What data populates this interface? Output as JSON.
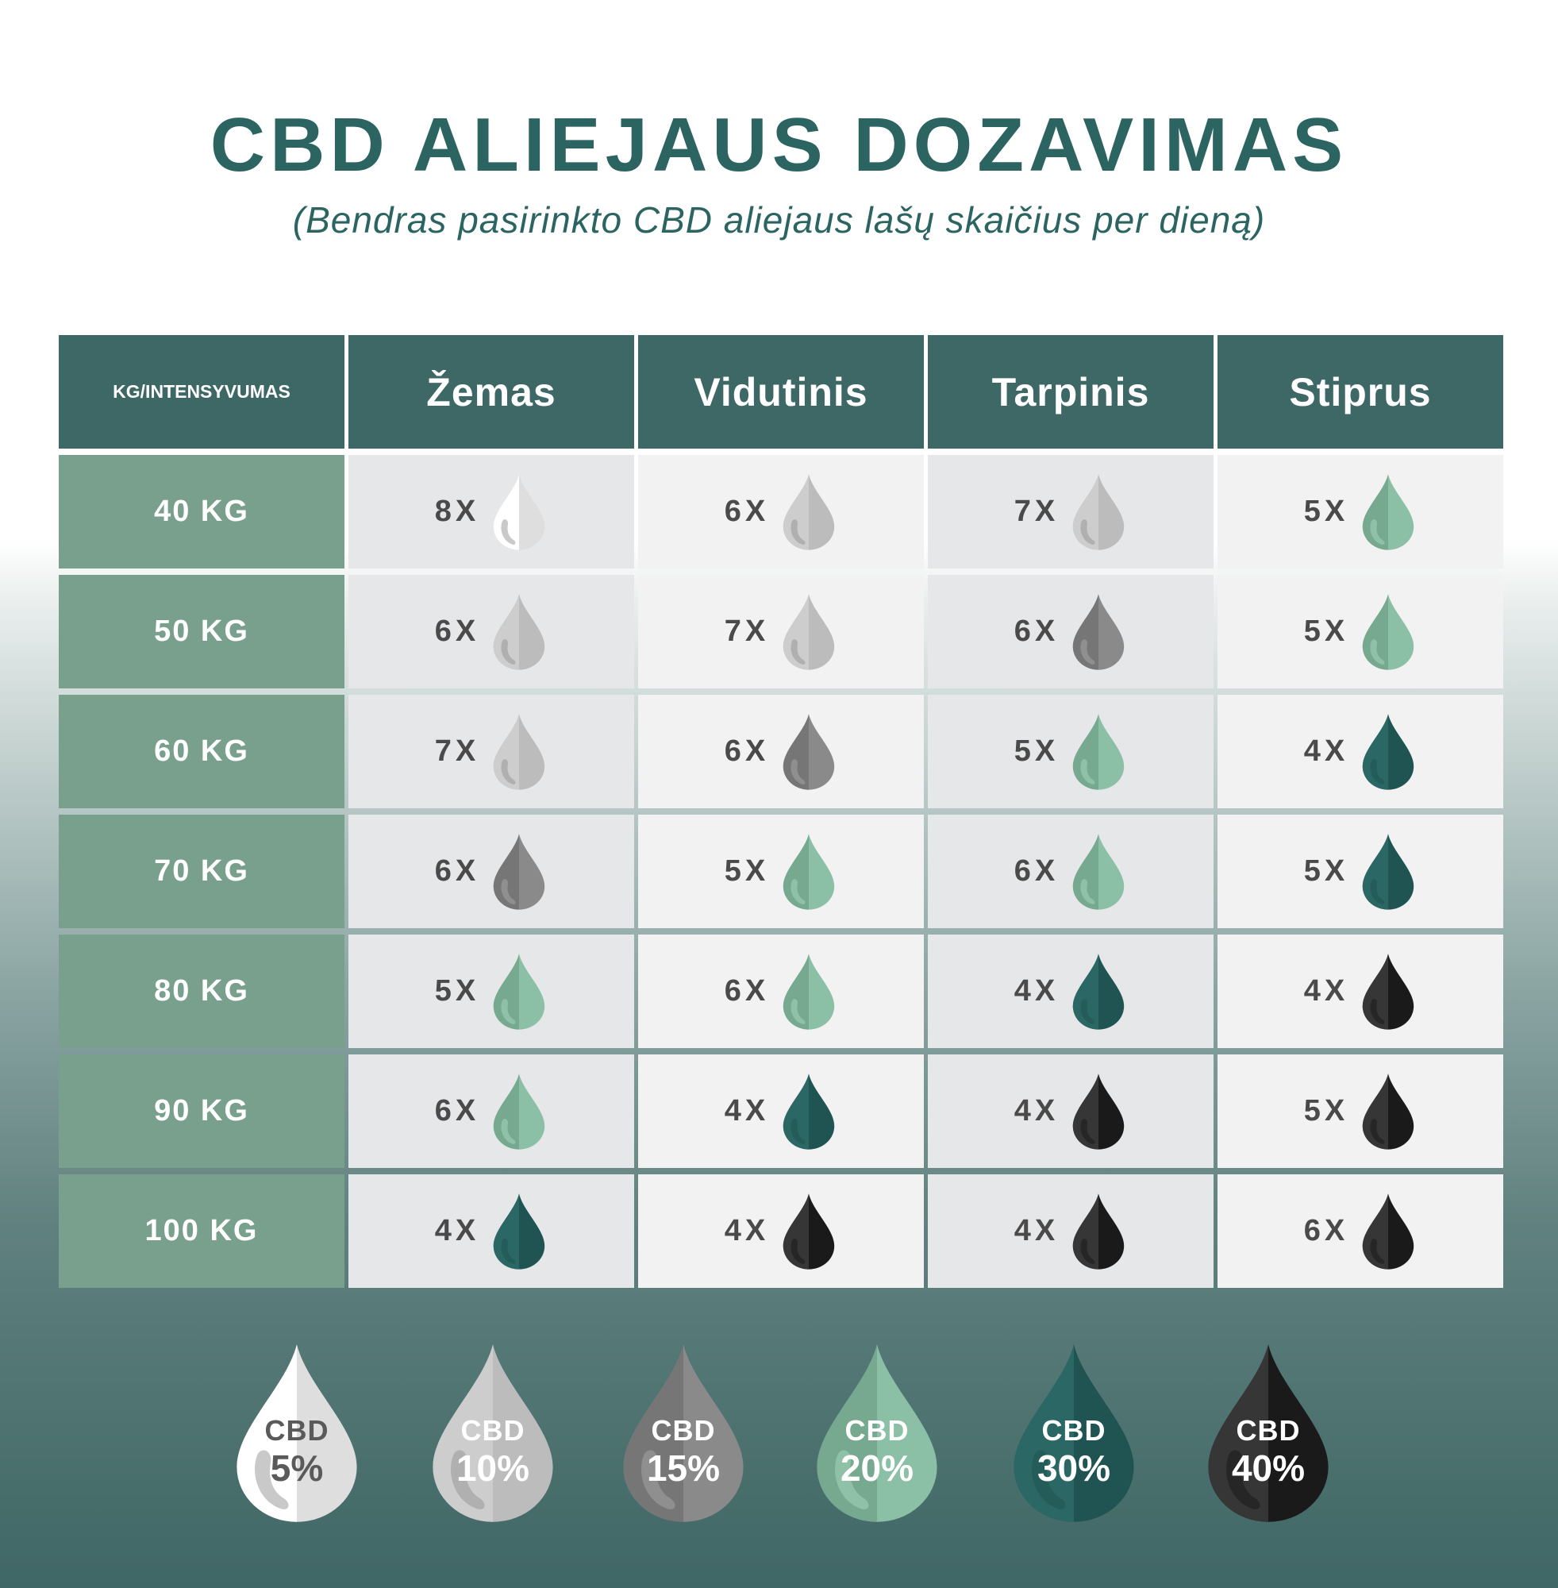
{
  "header": {
    "title": "CBD ALIEJAUS DOZAVIMAS",
    "subtitle": "(Bendras pasirinkto CBD aliejaus lašų skaičius per dieną)"
  },
  "table": {
    "columns": [
      "KG/INTENSYVUMAS",
      "Žemas",
      "Vidutinis",
      "Tarpinis",
      "Stiprus"
    ],
    "rows": [
      {
        "label": "40 KG",
        "cells": [
          {
            "value": "8X",
            "level": "5%"
          },
          {
            "value": "6X",
            "level": "10%"
          },
          {
            "value": "7X",
            "level": "10%"
          },
          {
            "value": "5X",
            "level": "20%"
          }
        ]
      },
      {
        "label": "50 KG",
        "cells": [
          {
            "value": "6X",
            "level": "10%"
          },
          {
            "value": "7X",
            "level": "10%"
          },
          {
            "value": "6X",
            "level": "15%"
          },
          {
            "value": "5X",
            "level": "20%"
          }
        ]
      },
      {
        "label": "60 KG",
        "cells": [
          {
            "value": "7X",
            "level": "10%"
          },
          {
            "value": "6X",
            "level": "15%"
          },
          {
            "value": "5X",
            "level": "20%"
          },
          {
            "value": "4X",
            "level": "30%"
          }
        ]
      },
      {
        "label": "70 KG",
        "cells": [
          {
            "value": "6X",
            "level": "15%"
          },
          {
            "value": "5X",
            "level": "20%"
          },
          {
            "value": "6X",
            "level": "20%"
          },
          {
            "value": "5X",
            "level": "30%"
          }
        ]
      },
      {
        "label": "80 KG",
        "cells": [
          {
            "value": "5X",
            "level": "20%"
          },
          {
            "value": "6X",
            "level": "20%"
          },
          {
            "value": "4X",
            "level": "30%"
          },
          {
            "value": "4X",
            "level": "40%"
          }
        ]
      },
      {
        "label": "90 KG",
        "cells": [
          {
            "value": "6X",
            "level": "20%"
          },
          {
            "value": "4X",
            "level": "30%"
          },
          {
            "value": "4X",
            "level": "40%"
          },
          {
            "value": "5X",
            "level": "40%"
          }
        ]
      },
      {
        "label": "100 KG",
        "cells": [
          {
            "value": "4X",
            "level": "30%"
          },
          {
            "value": "4X",
            "level": "40%"
          },
          {
            "value": "4X",
            "level": "40%"
          },
          {
            "value": "6X",
            "level": "40%"
          }
        ]
      }
    ]
  },
  "legend": [
    {
      "label": "CBD",
      "percent": "5%",
      "colors": {
        "left": "#ffffff",
        "right": "#dedede",
        "hl": "#c9c9c9",
        "text": "#5a5a5a"
      }
    },
    {
      "label": "CBD",
      "percent": "10%",
      "colors": {
        "left": "#cdcdcd",
        "right": "#bcbcbc",
        "hl": "#b0b0b0",
        "text": "#ffffff"
      }
    },
    {
      "label": "CBD",
      "percent": "15%",
      "colors": {
        "left": "#767676",
        "right": "#8a8a8a",
        "hl": "#8f8f8f",
        "text": "#ffffff"
      }
    },
    {
      "label": "CBD",
      "percent": "20%",
      "colors": {
        "left": "#76a990",
        "right": "#8bbfa6",
        "hl": "#8fc0a8",
        "text": "#ffffff"
      }
    },
    {
      "label": "CBD",
      "percent": "30%",
      "colors": {
        "left": "#2b6865",
        "right": "#1f5452",
        "hl": "#245c59",
        "text": "#ffffff"
      }
    },
    {
      "label": "CBD",
      "percent": "40%",
      "colors": {
        "left": "#363636",
        "right": "#1a1a1a",
        "hl": "#262626",
        "text": "#ffffff"
      }
    }
  ],
  "colors": {
    "title": "#2b6461",
    "header_bg": "#3e6866",
    "label_bg": "#78a08c"
  }
}
